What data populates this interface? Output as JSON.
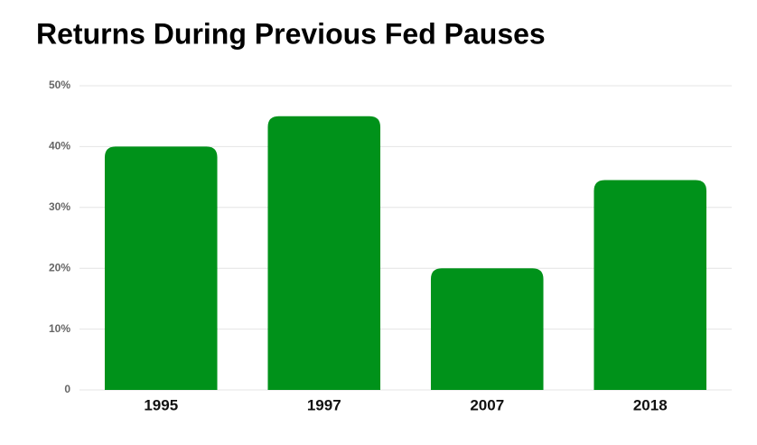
{
  "chart_data": {
    "type": "bar",
    "title": "Returns During Previous Fed Pauses",
    "categories": [
      "1995",
      "1997",
      "2007",
      "2018"
    ],
    "values": [
      40,
      45,
      20,
      34.5
    ],
    "color": "#00921a",
    "ylim": [
      0,
      50
    ],
    "yticks": [
      0,
      {
        "value": 10,
        "label": "10%"
      },
      {
        "value": 20,
        "label": "20%"
      },
      {
        "value": 30,
        "label": "30%"
      },
      {
        "value": 40,
        "label": "40%"
      },
      {
        "value": 50,
        "label": "50%"
      }
    ],
    "grid": true
  }
}
